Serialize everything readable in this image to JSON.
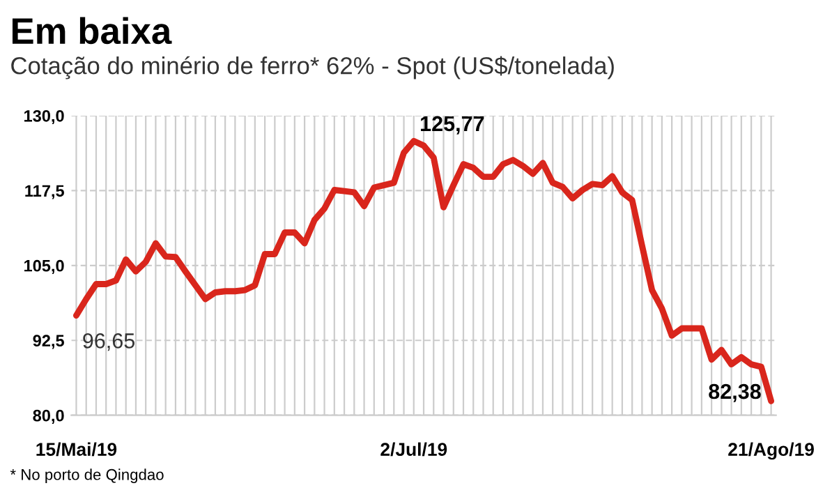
{
  "chart_data": {
    "type": "line",
    "title": "Em baixa",
    "subtitle": "Cotação do minério de ferro* 62% - Spot (US$/tonelada)",
    "annotations": [
      "* No porto de Qingdao"
    ],
    "categories": [
      "15/Mai/19",
      null,
      null,
      null,
      null,
      null,
      null,
      null,
      null,
      null,
      null,
      null,
      null,
      null,
      null,
      null,
      null,
      null,
      null,
      null,
      null,
      null,
      null,
      null,
      null,
      null,
      null,
      null,
      null,
      null,
      null,
      null,
      null,
      null,
      "2/Jul/19",
      null,
      null,
      null,
      null,
      null,
      null,
      null,
      null,
      null,
      null,
      null,
      null,
      null,
      null,
      null,
      null,
      null,
      null,
      null,
      null,
      null,
      null,
      null,
      null,
      null,
      null,
      null,
      null,
      null,
      null,
      null,
      null,
      null,
      null,
      null,
      "21/Ago/19"
    ],
    "series": [
      {
        "color": "#d9261c",
        "values": [
          96.65,
          99.4,
          101.9,
          101.9,
          102.5,
          106.0,
          104.0,
          105.6,
          108.7,
          106.5,
          106.4,
          104.0,
          101.7,
          99.4,
          100.5,
          100.7,
          100.7,
          100.9,
          101.7,
          106.9,
          106.9,
          110.5,
          110.5,
          108.7,
          112.6,
          114.5,
          117.6,
          117.4,
          117.2,
          114.9,
          118.0,
          118.4,
          118.8,
          123.8,
          125.77,
          125.0,
          123.0,
          114.7,
          118.4,
          121.9,
          121.3,
          119.8,
          119.8,
          121.9,
          122.6,
          121.6,
          120.3,
          122.1,
          118.8,
          118.1,
          116.2,
          117.6,
          118.6,
          118.4,
          119.9,
          117.2,
          115.9,
          108.3,
          100.9,
          97.8,
          93.3,
          94.5,
          94.5,
          94.5,
          89.3,
          90.9,
          88.5,
          89.7,
          88.5,
          88.1,
          82.38
        ],
        "value_labels": [
          "96,65",
          null,
          null,
          null,
          null,
          null,
          null,
          null,
          null,
          null,
          null,
          null,
          null,
          null,
          null,
          null,
          null,
          null,
          null,
          null,
          null,
          null,
          null,
          null,
          null,
          null,
          null,
          null,
          null,
          null,
          null,
          null,
          null,
          null,
          "125,77",
          null,
          null,
          null,
          null,
          null,
          null,
          null,
          null,
          null,
          null,
          null,
          null,
          null,
          null,
          null,
          null,
          null,
          null,
          null,
          null,
          null,
          null,
          null,
          null,
          null,
          null,
          null,
          null,
          null,
          null,
          null,
          null,
          null,
          null,
          null,
          "82,38"
        ]
      }
    ],
    "ylim": [
      80,
      130
    ],
    "yticks": [
      {
        "value": 80,
        "label": "80,0"
      },
      {
        "value": 92.5,
        "label": "92,5"
      },
      {
        "value": 105,
        "label": "105,0"
      },
      {
        "value": 117.5,
        "label": "117,5"
      },
      {
        "value": 130,
        "label": "130,0"
      }
    ],
    "grid": true,
    "legend": false,
    "marker": "none",
    "line_style": "solid"
  }
}
